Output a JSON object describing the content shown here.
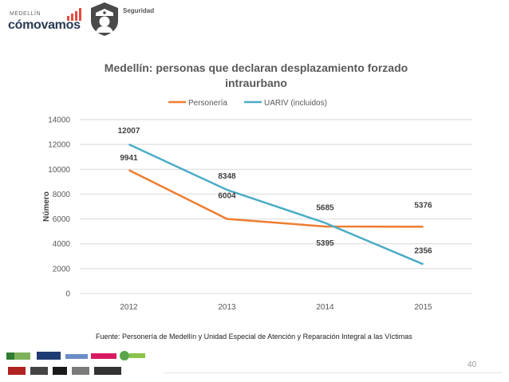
{
  "header": {
    "logo_small": "MEDELLÍN",
    "logo_main": "cómovamos",
    "section": "Seguridad",
    "section_icon": "police-officer-icon"
  },
  "chart_data": {
    "type": "line",
    "title": "Medellín: personas que declaran desplazamiento forzado intraurbano",
    "title_lines": [
      "Medellín: personas que declaran desplazamiento forzado",
      "intraurbano"
    ],
    "xlabel": "",
    "ylabel": "Número",
    "categories": [
      "2012",
      "2013",
      "2014",
      "2015"
    ],
    "ylim": [
      0,
      14000
    ],
    "yticks": [
      "0",
      "2000",
      "4000",
      "6000",
      "8000",
      "10000",
      "12000",
      "14000"
    ],
    "grid": true,
    "legend_position": "top-center",
    "series": [
      {
        "name": "Personería",
        "color": "#ED7D31",
        "values": [
          9941,
          6004,
          5395,
          5376
        ],
        "labels": [
          "9941",
          "6004",
          "5395",
          "5376"
        ]
      },
      {
        "name": "UARIV (incluidos)",
        "color": "#4BACC6",
        "values": [
          12007,
          8348,
          5685,
          2356
        ],
        "labels": [
          "12007",
          "8348",
          "5685",
          "2356"
        ]
      }
    ]
  },
  "footer": {
    "source": "Fuente: Personería de Medellín y Unidad Especial de Atención y Reparación Integral a las Víctimas",
    "page_number": "40",
    "partner_logos": [
      "PROANTIOQUIA",
      "EAFIT",
      "bolsa",
      "comfama",
      "Cámara de Comercio",
      "EL TIEMPO"
    ]
  }
}
